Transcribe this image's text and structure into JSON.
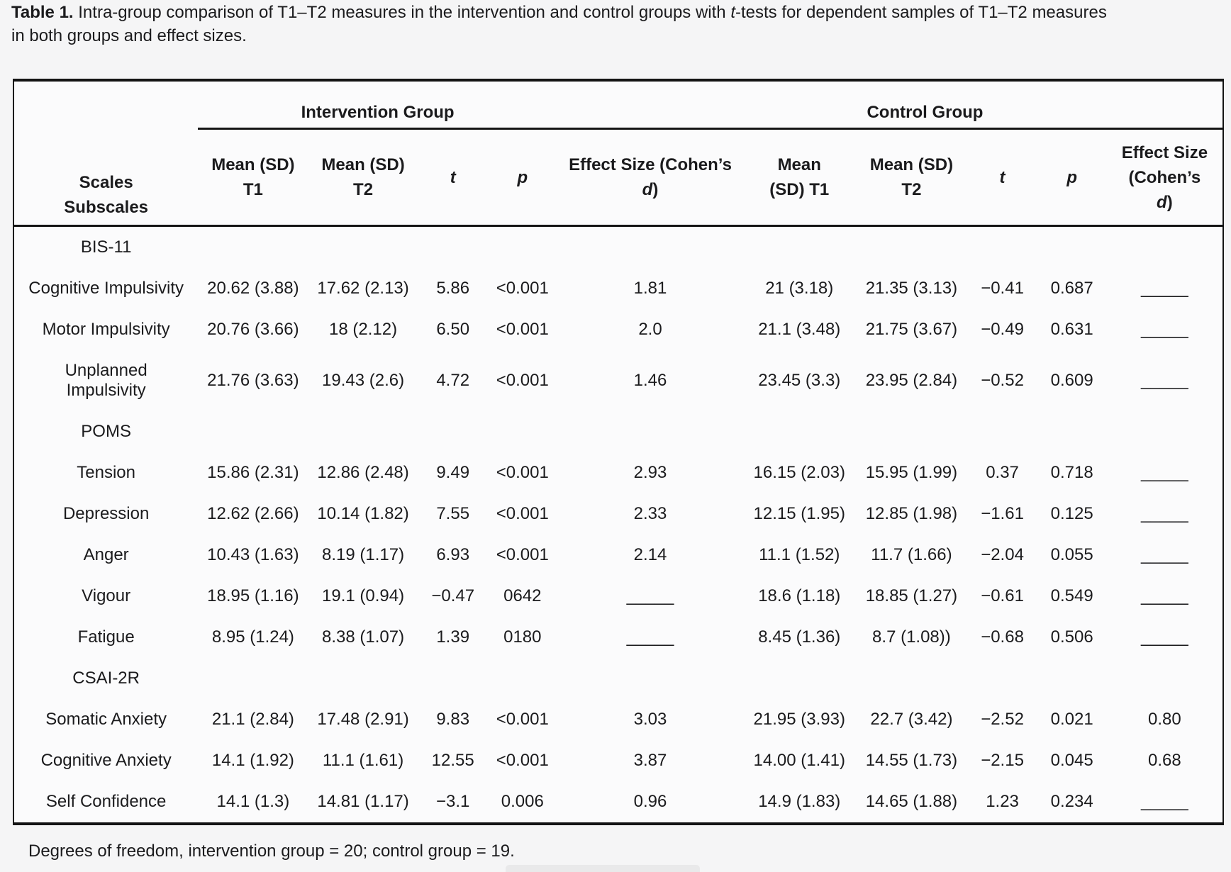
{
  "caption": {
    "bold": "Table 1.",
    "pre": " Intra-group comparison of T1–T2 measures in the intervention and control groups with ",
    "italic": "t",
    "post": "-tests for dependent samples of T1–T2 measures\nin both groups and effect sizes."
  },
  "table": {
    "corner": "Scales\nSubscales",
    "intervention_label": "Intervention Group",
    "control_label": "Control Group",
    "columns": [
      {
        "pre": "Mean (SD)\nT1",
        "it": "",
        "post": ""
      },
      {
        "pre": "Mean (SD)\nT2",
        "it": "",
        "post": ""
      },
      {
        "pre": "",
        "it": "t",
        "post": ""
      },
      {
        "pre": "",
        "it": "p",
        "post": ""
      },
      {
        "pre": "Effect Size (Cohen’s\n",
        "it": "d",
        "post": ")"
      },
      {
        "pre": "Mean\n(SD) T1",
        "it": "",
        "post": ""
      },
      {
        "pre": "Mean (SD)\nT2",
        "it": "",
        "post": ""
      },
      {
        "pre": "",
        "it": "t",
        "post": ""
      },
      {
        "pre": "",
        "it": "p",
        "post": ""
      },
      {
        "pre": "Effect Size\n(Cohen’s\n",
        "it": "d",
        "post": ")"
      }
    ],
    "rows": [
      {
        "type": "section",
        "label": "BIS-11"
      },
      {
        "type": "data",
        "label": "Cognitive Impulsivity",
        "cells": [
          "20.62 (3.88)",
          "17.62 (2.13)",
          "5.86",
          "<0.001",
          "1.81",
          "21 (3.18)",
          "21.35 (3.13)",
          "−0.41",
          "0.687",
          "_____"
        ]
      },
      {
        "type": "data",
        "label": "Motor Impulsivity",
        "cells": [
          "20.76 (3.66)",
          "18 (2.12)",
          "6.50",
          "<0.001",
          "2.0",
          "21.1 (3.48)",
          "21.75 (3.67)",
          "−0.49",
          "0.631",
          "_____"
        ]
      },
      {
        "type": "data",
        "label": "Unplanned\nImpulsivity",
        "cells": [
          "21.76 (3.63)",
          "19.43 (2.6)",
          "4.72",
          "<0.001",
          "1.46",
          "23.45 (3.3)",
          "23.95 (2.84)",
          "−0.52",
          "0.609",
          "_____"
        ]
      },
      {
        "type": "section",
        "label": "POMS"
      },
      {
        "type": "data",
        "label": "Tension",
        "cells": [
          "15.86 (2.31)",
          "12.86 (2.48)",
          "9.49",
          "<0.001",
          "2.93",
          "16.15 (2.03)",
          "15.95 (1.99)",
          "0.37",
          "0.718",
          "_____"
        ]
      },
      {
        "type": "data",
        "label": "Depression",
        "cells": [
          "12.62 (2.66)",
          "10.14 (1.82)",
          "7.55",
          "<0.001",
          "2.33",
          "12.15 (1.95)",
          "12.85 (1.98)",
          "−1.61",
          "0.125",
          "_____"
        ]
      },
      {
        "type": "data",
        "label": "Anger",
        "cells": [
          "10.43 (1.63)",
          "8.19 (1.17)",
          "6.93",
          "<0.001",
          "2.14",
          "11.1 (1.52)",
          "11.7 (1.66)",
          "−2.04",
          "0.055",
          "_____"
        ]
      },
      {
        "type": "data",
        "label": "Vigour",
        "cells": [
          "18.95 (1.16)",
          "19.1 (0.94)",
          "−0.47",
          "0642",
          "_____",
          "18.6 (1.18)",
          "18.85 (1.27)",
          "−0.61",
          "0.549",
          "_____"
        ]
      },
      {
        "type": "data",
        "label": "Fatigue",
        "cells": [
          "8.95 (1.24)",
          "8.38 (1.07)",
          "1.39",
          "0180",
          "_____",
          "8.45 (1.36)",
          "8.7 (1.08))",
          "−0.68",
          "0.506",
          "_____"
        ]
      },
      {
        "type": "section",
        "label": "CSAI-2R"
      },
      {
        "type": "data",
        "label": "Somatic Anxiety",
        "cells": [
          "21.1 (2.84)",
          "17.48 (2.91)",
          "9.83",
          "<0.001",
          "3.03",
          "21.95 (3.93)",
          "22.7 (3.42)",
          "−2.52",
          "0.021",
          "0.80"
        ]
      },
      {
        "type": "data",
        "label": "Cognitive Anxiety",
        "cells": [
          "14.1 (1.92)",
          "11.1 (1.61)",
          "12.55",
          "<0.001",
          "3.87",
          "14.00 (1.41)",
          "14.55 (1.73)",
          "−2.15",
          "0.045",
          "0.68"
        ]
      },
      {
        "type": "data",
        "label": "Self Confidence",
        "cells": [
          "14.1 (1.3)",
          "14.81 (1.17)",
          "−3.1",
          "0.006",
          "0.96",
          "14.9 (1.83)",
          "14.65 (1.88)",
          "1.23",
          "0.234",
          "_____"
        ]
      }
    ]
  },
  "footnote": "Degrees of freedom, intervention group = 20; control group = 19."
}
